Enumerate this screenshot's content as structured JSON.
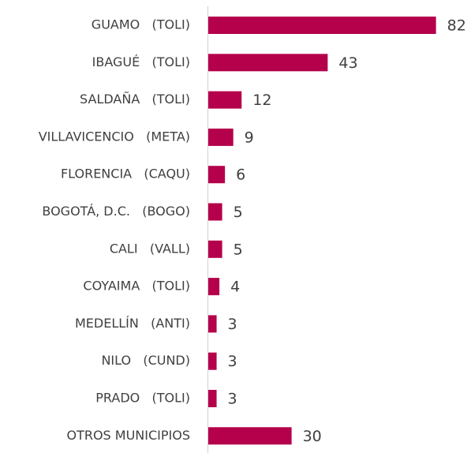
{
  "chart_data": {
    "type": "bar",
    "orientation": "horizontal",
    "categories": [
      "GUAMO   (TOLI)",
      "IBAGUÉ   (TOLI)",
      "SALDAÑA   (TOLI)",
      "VILLAVICENCIO   (META)",
      "FLORENCIA   (CAQU)",
      "BOGOTÁ, D.C.   (BOGO)",
      "CALI   (VALL)",
      "COYAIMA   (TOLI)",
      "MEDELLÍN   (ANTI)",
      "NILO   (CUND)",
      "PRADO   (TOLI)",
      "OTROS MUNICIPIOS"
    ],
    "values": [
      82,
      43,
      12,
      9,
      6,
      5,
      5,
      4,
      3,
      3,
      3,
      30
    ],
    "color": "#b5004b"
  }
}
